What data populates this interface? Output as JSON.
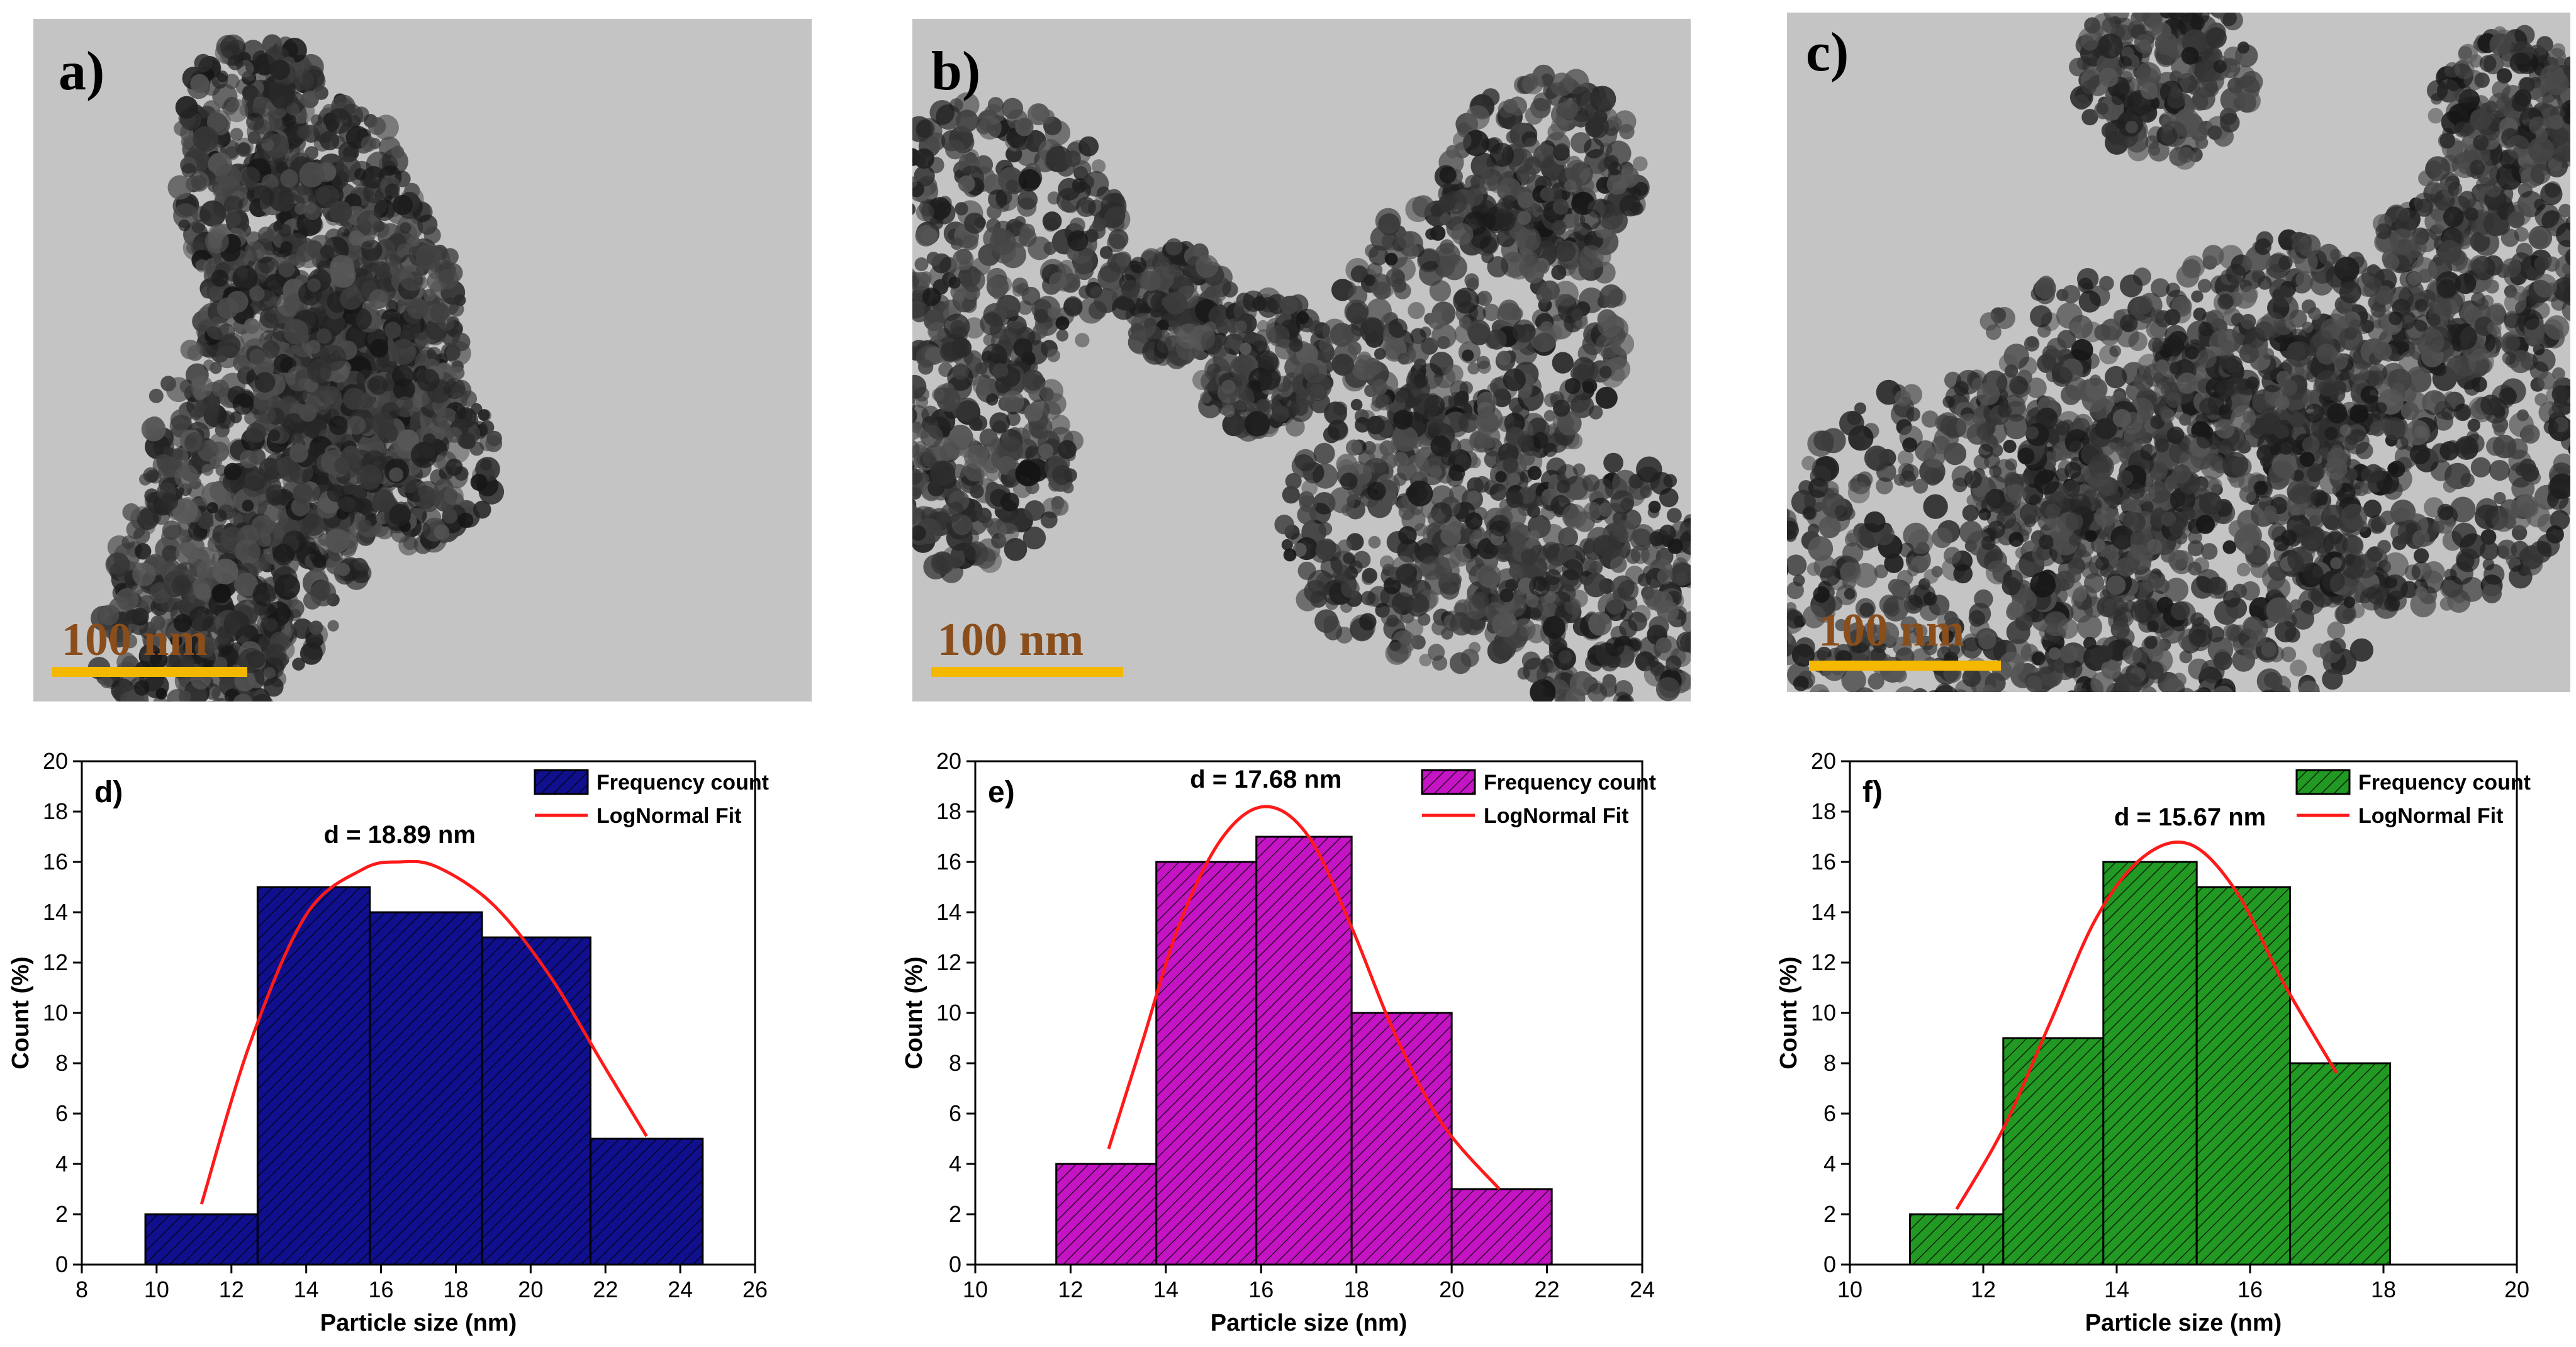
{
  "tem_panels": [
    {
      "letter": "a)",
      "scale_text": "100 nm",
      "image": "tem-micrograph-nanoparticle-aggregate"
    },
    {
      "letter": "b)",
      "scale_text": "100 nm",
      "image": "tem-micrograph-nanoparticle-aggregate"
    },
    {
      "letter": "c)",
      "scale_text": "100 nm",
      "image": "tem-micrograph-nanoparticle-aggregate"
    }
  ],
  "chart_data": [
    {
      "type": "bar",
      "panel": "d)",
      "title": "",
      "xlabel": "Particle size (nm)",
      "ylabel": "Count (%)",
      "annotation": "d = 18.89 nm",
      "xlim": [
        8,
        26
      ],
      "ylim": [
        0,
        20
      ],
      "xticks": [
        8,
        10,
        12,
        14,
        16,
        18,
        20,
        22,
        24,
        26
      ],
      "yticks": [
        0,
        2,
        4,
        6,
        8,
        10,
        12,
        14,
        16,
        18,
        20
      ],
      "bin_edges": [
        9.7,
        12.7,
        15.7,
        18.7,
        21.6,
        24.6
      ],
      "values": [
        2,
        15,
        14,
        13,
        5
      ],
      "fit_x": [
        11.2,
        12.5,
        14,
        15.5,
        16.5,
        17.5,
        19,
        20.5,
        22,
        23.1
      ],
      "fit_y": [
        2.4,
        8.8,
        13.9,
        15.7,
        16.0,
        15.8,
        14.3,
        11.5,
        7.8,
        5.1
      ],
      "legend": [
        "Frequency count",
        "LogNormal Fit"
      ],
      "legend_position": "top-right",
      "bar_color": "#10108e",
      "fit_color": "#ff1a1a"
    },
    {
      "type": "bar",
      "panel": "e)",
      "title": "",
      "xlabel": "Particle size (nm)",
      "ylabel": "Count (%)",
      "annotation": "d = 17.68 nm",
      "xlim": [
        10,
        24
      ],
      "ylim": [
        0,
        20
      ],
      "xticks": [
        10,
        12,
        14,
        16,
        18,
        20,
        22,
        24
      ],
      "yticks": [
        0,
        2,
        4,
        6,
        8,
        10,
        12,
        14,
        16,
        18,
        20
      ],
      "bin_edges": [
        11.7,
        13.8,
        15.9,
        17.9,
        20.0,
        22.1
      ],
      "values": [
        4,
        16,
        17,
        10,
        3
      ],
      "fit_x": [
        12.8,
        13.5,
        14.3,
        15.2,
        16.1,
        17.0,
        17.9,
        18.8,
        19.8,
        21.0
      ],
      "fit_y": [
        4.6,
        8.8,
        13.6,
        17.0,
        18.2,
        17.0,
        13.4,
        9.2,
        5.6,
        3.0
      ],
      "legend": [
        "Frequency count",
        "LogNormal Fit"
      ],
      "legend_position": "top-right",
      "bar_color": "#c414c4",
      "fit_color": "#ff1a1a"
    },
    {
      "type": "bar",
      "panel": "f)",
      "title": "",
      "xlabel": "Particle size (nm)",
      "ylabel": "Count (%)",
      "annotation": "d = 15.67 nm",
      "xlim": [
        10,
        20
      ],
      "ylim": [
        0,
        20
      ],
      "xticks": [
        10,
        12,
        14,
        16,
        18,
        20
      ],
      "yticks": [
        0,
        2,
        4,
        6,
        8,
        10,
        12,
        14,
        16,
        18,
        20
      ],
      "bin_edges": [
        10.9,
        12.3,
        13.8,
        15.2,
        16.6,
        18.1
      ],
      "values": [
        2,
        9,
        16,
        15,
        8
      ],
      "fit_x": [
        11.6,
        12.3,
        13.0,
        13.7,
        14.4,
        15.1,
        15.8,
        16.5,
        17.3
      ],
      "fit_y": [
        2.2,
        5.4,
        9.6,
        13.8,
        16.2,
        16.7,
        14.8,
        11.2,
        7.6
      ],
      "legend": [
        "Frequency count",
        "LogNormal Fit"
      ],
      "legend_position": "top-right",
      "bar_color": "#229922",
      "fit_color": "#ff1a1a"
    }
  ]
}
